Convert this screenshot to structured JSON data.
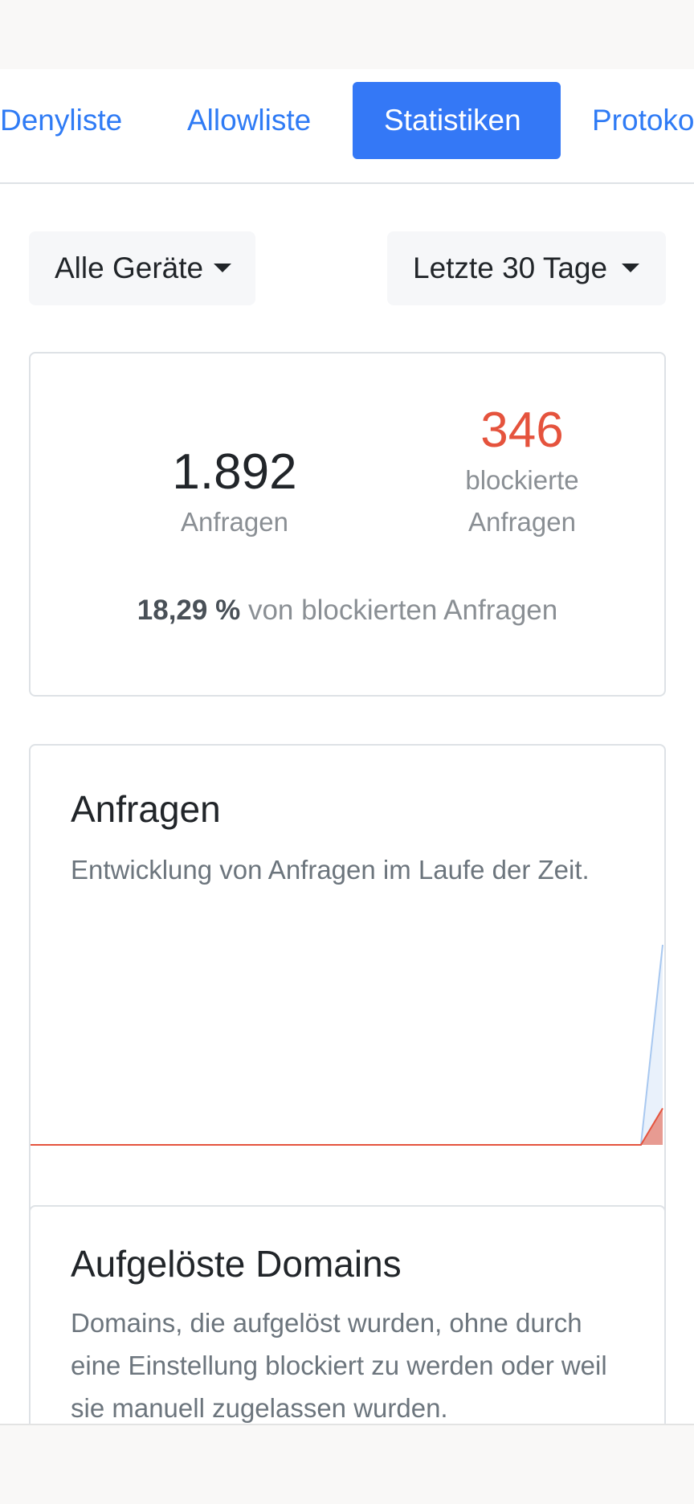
{
  "tabs": [
    {
      "label": "Denyliste",
      "active": false
    },
    {
      "label": "Allowliste",
      "active": false
    },
    {
      "label": "Statistiken",
      "active": true
    },
    {
      "label": "Protokolle",
      "active": false
    }
  ],
  "filters": {
    "device": "Alle Geräte",
    "period": "Letzte 30 Tage"
  },
  "summary": {
    "total_value": "1.892",
    "total_label": "Anfragen",
    "blocked_value": "346",
    "blocked_label_1": "blockierte",
    "blocked_label_2": "Anfragen",
    "percent_value": "18,29 %",
    "percent_text": "von blockierten Anfragen"
  },
  "queries_card": {
    "title": "Anfragen",
    "description": "Entwicklung von Anfragen im Laufe der Zeit."
  },
  "domains_card": {
    "title": "Aufgelöste Domains",
    "description": "Domains, die aufgelöst wurden, ohne durch eine Einstellung blockiert zu werden oder weil sie manuell zugelassen wurden."
  },
  "colors": {
    "accent": "#3478f6",
    "blocked": "#e5533d",
    "total_series": "#a8c8f0"
  },
  "chart_data": {
    "type": "area",
    "series": [
      {
        "values": [
          0,
          0,
          0,
          0,
          0,
          0,
          0,
          0,
          0,
          0,
          0,
          0,
          0,
          0,
          0,
          0,
          0,
          0,
          0,
          0,
          0,
          0,
          0,
          0,
          0,
          0,
          0,
          0,
          0,
          1892
        ]
      },
      {
        "values": [
          0,
          0,
          0,
          0,
          0,
          0,
          0,
          0,
          0,
          0,
          0,
          0,
          0,
          0,
          0,
          0,
          0,
          0,
          0,
          0,
          0,
          0,
          0,
          0,
          0,
          0,
          0,
          0,
          0,
          346
        ]
      }
    ],
    "grid": false,
    "legend": "none"
  }
}
